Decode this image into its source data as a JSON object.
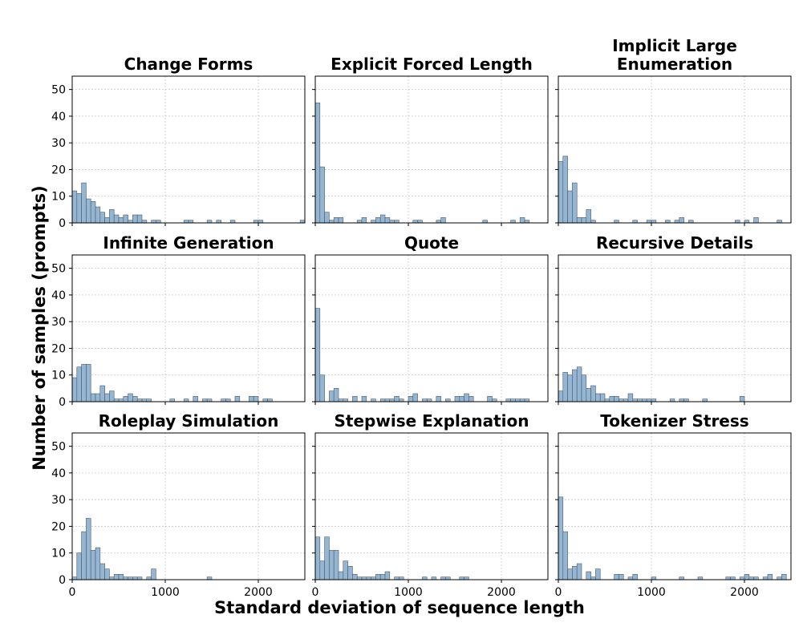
{
  "figure": {
    "ylabel": "Number of samples (prompts)",
    "xlabel": "Standard deviation of sequence length"
  },
  "chart_data": {
    "type": "histogram",
    "shared_axes": true,
    "xlim": [
      0,
      2500
    ],
    "ylim": [
      0,
      55
    ],
    "xticks": [
      0,
      1000,
      2000
    ],
    "yticks": [
      0,
      10,
      20,
      30,
      40,
      50
    ],
    "bin_width": 50,
    "grid": true,
    "panels": [
      {
        "title": [
          "Change Forms"
        ],
        "bins": [
          [
            0,
            12
          ],
          [
            50,
            11
          ],
          [
            100,
            15
          ],
          [
            150,
            9
          ],
          [
            200,
            8
          ],
          [
            250,
            6
          ],
          [
            300,
            4
          ],
          [
            350,
            2
          ],
          [
            400,
            5
          ],
          [
            450,
            3
          ],
          [
            500,
            2
          ],
          [
            550,
            3
          ],
          [
            600,
            1
          ],
          [
            650,
            3
          ],
          [
            700,
            3
          ],
          [
            750,
            1
          ],
          [
            850,
            1
          ],
          [
            900,
            1
          ],
          [
            1200,
            1
          ],
          [
            1250,
            1
          ],
          [
            1450,
            1
          ],
          [
            1550,
            1
          ],
          [
            1700,
            1
          ],
          [
            1950,
            1
          ],
          [
            2000,
            1
          ],
          [
            2450,
            1
          ]
        ]
      },
      {
        "title": [
          "Explicit Forced Length"
        ],
        "bins": [
          [
            0,
            45
          ],
          [
            50,
            21
          ],
          [
            100,
            4
          ],
          [
            150,
            1
          ],
          [
            200,
            2
          ],
          [
            250,
            2
          ],
          [
            450,
            1
          ],
          [
            500,
            2
          ],
          [
            600,
            1
          ],
          [
            650,
            2
          ],
          [
            700,
            3
          ],
          [
            750,
            2
          ],
          [
            800,
            1
          ],
          [
            850,
            1
          ],
          [
            1050,
            1
          ],
          [
            1100,
            1
          ],
          [
            1300,
            1
          ],
          [
            1350,
            2
          ],
          [
            1800,
            1
          ],
          [
            2100,
            1
          ],
          [
            2200,
            2
          ],
          [
            2250,
            1
          ]
        ]
      },
      {
        "title": [
          "Implicit Large",
          "Enumeration"
        ],
        "bins": [
          [
            0,
            23
          ],
          [
            50,
            25
          ],
          [
            100,
            12
          ],
          [
            150,
            15
          ],
          [
            200,
            2
          ],
          [
            250,
            2
          ],
          [
            300,
            5
          ],
          [
            350,
            1
          ],
          [
            600,
            1
          ],
          [
            800,
            1
          ],
          [
            950,
            1
          ],
          [
            1000,
            1
          ],
          [
            1150,
            1
          ],
          [
            1250,
            1
          ],
          [
            1300,
            2
          ],
          [
            1400,
            1
          ],
          [
            1900,
            1
          ],
          [
            2000,
            1
          ],
          [
            2100,
            2
          ],
          [
            2350,
            1
          ]
        ]
      },
      {
        "title": [
          "Infinite Generation"
        ],
        "bins": [
          [
            0,
            9
          ],
          [
            50,
            13
          ],
          [
            100,
            14
          ],
          [
            150,
            14
          ],
          [
            200,
            3
          ],
          [
            250,
            3
          ],
          [
            300,
            6
          ],
          [
            350,
            3
          ],
          [
            400,
            4
          ],
          [
            450,
            1
          ],
          [
            500,
            1
          ],
          [
            550,
            2
          ],
          [
            600,
            3
          ],
          [
            650,
            2
          ],
          [
            700,
            1
          ],
          [
            750,
            1
          ],
          [
            800,
            1
          ],
          [
            1050,
            1
          ],
          [
            1200,
            1
          ],
          [
            1300,
            2
          ],
          [
            1400,
            1
          ],
          [
            1450,
            1
          ],
          [
            1600,
            1
          ],
          [
            1650,
            1
          ],
          [
            1750,
            2
          ],
          [
            1900,
            2
          ],
          [
            1950,
            2
          ],
          [
            2050,
            1
          ],
          [
            2100,
            1
          ]
        ]
      },
      {
        "title": [
          "Quote"
        ],
        "bins": [
          [
            0,
            35
          ],
          [
            50,
            10
          ],
          [
            150,
            4
          ],
          [
            200,
            5
          ],
          [
            250,
            1
          ],
          [
            300,
            1
          ],
          [
            400,
            2
          ],
          [
            500,
            2
          ],
          [
            600,
            1
          ],
          [
            700,
            1
          ],
          [
            750,
            1
          ],
          [
            800,
            1
          ],
          [
            850,
            2
          ],
          [
            900,
            1
          ],
          [
            1000,
            2
          ],
          [
            1050,
            3
          ],
          [
            1150,
            1
          ],
          [
            1200,
            1
          ],
          [
            1300,
            2
          ],
          [
            1400,
            1
          ],
          [
            1500,
            2
          ],
          [
            1550,
            2
          ],
          [
            1600,
            3
          ],
          [
            1650,
            2
          ],
          [
            1850,
            2
          ],
          [
            1900,
            1
          ],
          [
            2050,
            1
          ],
          [
            2100,
            1
          ],
          [
            2150,
            1
          ],
          [
            2200,
            1
          ],
          [
            2250,
            1
          ]
        ]
      },
      {
        "title": [
          "Recursive Details"
        ],
        "bins": [
          [
            0,
            4
          ],
          [
            50,
            11
          ],
          [
            100,
            10
          ],
          [
            150,
            12
          ],
          [
            200,
            13
          ],
          [
            250,
            10
          ],
          [
            300,
            5
          ],
          [
            350,
            6
          ],
          [
            400,
            3
          ],
          [
            450,
            3
          ],
          [
            500,
            1
          ],
          [
            550,
            2
          ],
          [
            600,
            2
          ],
          [
            650,
            1
          ],
          [
            700,
            1
          ],
          [
            750,
            3
          ],
          [
            800,
            1
          ],
          [
            850,
            1
          ],
          [
            900,
            1
          ],
          [
            950,
            1
          ],
          [
            1000,
            1
          ],
          [
            1200,
            1
          ],
          [
            1300,
            1
          ],
          [
            1350,
            1
          ],
          [
            1550,
            1
          ],
          [
            1950,
            2
          ]
        ]
      },
      {
        "title": [
          "Roleplay Simulation"
        ],
        "bins": [
          [
            0,
            1
          ],
          [
            50,
            10
          ],
          [
            100,
            18
          ],
          [
            150,
            23
          ],
          [
            200,
            11
          ],
          [
            250,
            12
          ],
          [
            300,
            6
          ],
          [
            350,
            4
          ],
          [
            400,
            1
          ],
          [
            450,
            2
          ],
          [
            500,
            2
          ],
          [
            550,
            1
          ],
          [
            600,
            1
          ],
          [
            650,
            1
          ],
          [
            700,
            1
          ],
          [
            800,
            1
          ],
          [
            850,
            4
          ],
          [
            1450,
            1
          ]
        ]
      },
      {
        "title": [
          "Stepwise Explanation"
        ],
        "bins": [
          [
            0,
            16
          ],
          [
            50,
            7
          ],
          [
            100,
            16
          ],
          [
            150,
            11
          ],
          [
            200,
            11
          ],
          [
            250,
            3
          ],
          [
            300,
            7
          ],
          [
            350,
            5
          ],
          [
            400,
            2
          ],
          [
            450,
            1
          ],
          [
            500,
            1
          ],
          [
            550,
            1
          ],
          [
            600,
            1
          ],
          [
            650,
            2
          ],
          [
            700,
            2
          ],
          [
            750,
            3
          ],
          [
            850,
            1
          ],
          [
            900,
            1
          ],
          [
            1150,
            1
          ],
          [
            1250,
            1
          ],
          [
            1350,
            1
          ],
          [
            1400,
            1
          ],
          [
            1550,
            1
          ],
          [
            1600,
            1
          ]
        ]
      },
      {
        "title": [
          "Tokenizer Stress"
        ],
        "bins": [
          [
            0,
            31
          ],
          [
            50,
            18
          ],
          [
            100,
            4
          ],
          [
            150,
            5
          ],
          [
            200,
            6
          ],
          [
            300,
            3
          ],
          [
            350,
            1
          ],
          [
            400,
            4
          ],
          [
            600,
            2
          ],
          [
            650,
            2
          ],
          [
            750,
            1
          ],
          [
            800,
            2
          ],
          [
            1000,
            1
          ],
          [
            1300,
            1
          ],
          [
            1500,
            1
          ],
          [
            1800,
            1
          ],
          [
            1850,
            1
          ],
          [
            1950,
            1
          ],
          [
            2000,
            2
          ],
          [
            2050,
            1
          ],
          [
            2100,
            1
          ],
          [
            2200,
            1
          ],
          [
            2250,
            2
          ],
          [
            2350,
            1
          ],
          [
            2400,
            2
          ]
        ]
      }
    ]
  }
}
